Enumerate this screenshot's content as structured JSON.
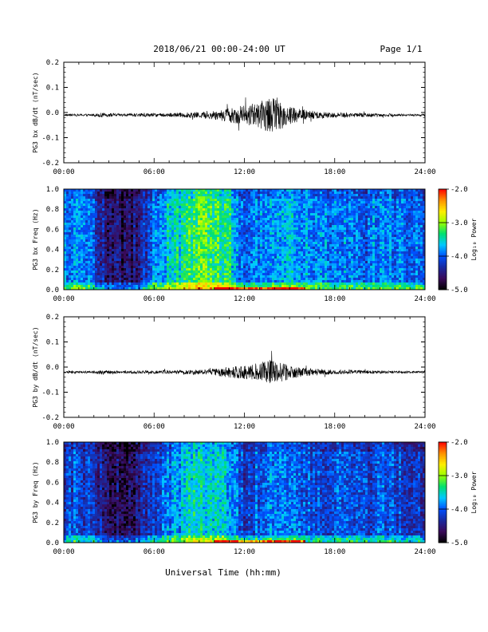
{
  "header": {
    "title": "2018/06/21  00:00-24:00 UT",
    "page": "Page 1/1"
  },
  "footer": {
    "xlabel": "Universal Time (hh:mm)"
  },
  "time_ticks": [
    "00:00",
    "06:00",
    "12:00",
    "18:00",
    "24:00"
  ],
  "colorbar": {
    "label": "Log₁₀ Power",
    "ticks": [
      "-2.0",
      "-3.0",
      "-4.0",
      "-5.0"
    ],
    "range": [
      -5.0,
      -2.0
    ],
    "colormap": [
      "#000000",
      "#3a0a5a",
      "#1a2aa0",
      "#0050ff",
      "#00c8ff",
      "#00e070",
      "#9aff00",
      "#ffee00",
      "#ff9000",
      "#ff0000"
    ]
  },
  "chart_data": [
    {
      "type": "line",
      "id": "bx-waveform",
      "ylabel": "PG3 bx dB/dt (nT/sec)",
      "xlim": [
        0,
        24
      ],
      "ylim": [
        -0.2,
        0.2
      ],
      "yticks": [
        "0.2",
        "0.1",
        "0.0",
        "-0.1",
        "-0.2"
      ],
      "baseline": -0.01,
      "envelope": {
        "x_hours": [
          0,
          2,
          2.5,
          3,
          4,
          5,
          6,
          7,
          8,
          9,
          10,
          11,
          12,
          13,
          13.5,
          14,
          14.5,
          15,
          16,
          17,
          18,
          20,
          22,
          24
        ],
        "amplitude": [
          0.004,
          0.005,
          0.009,
          0.007,
          0.005,
          0.007,
          0.007,
          0.008,
          0.01,
          0.012,
          0.018,
          0.03,
          0.04,
          0.05,
          0.07,
          0.065,
          0.055,
          0.04,
          0.02,
          0.015,
          0.01,
          0.008,
          0.005,
          0.004
        ]
      }
    },
    {
      "type": "heatmap",
      "id": "bx-spectrogram",
      "ylabel": "PG3 bx Freq (Hz)",
      "xlim": [
        0,
        24
      ],
      "ylim": [
        0.0,
        1.0
      ],
      "yticks": [
        "1.0",
        "0.8",
        "0.6",
        "0.4",
        "0.2",
        "0.0"
      ],
      "zlim": [
        -5.0,
        -2.0
      ],
      "power_profile": {
        "x_hours": [
          0,
          1,
          2,
          3,
          4,
          5,
          6,
          7,
          8,
          9,
          10,
          11,
          12,
          13,
          14,
          15,
          16,
          17,
          18,
          19,
          20,
          21,
          22,
          23,
          24
        ],
        "level": [
          -4.0,
          -3.9,
          -4.1,
          -4.6,
          -4.7,
          -4.5,
          -3.9,
          -3.6,
          -3.4,
          -3.2,
          -3.3,
          -3.4,
          -4.1,
          -3.9,
          -3.8,
          -3.7,
          -3.8,
          -3.9,
          -3.9,
          -3.9,
          -4.1,
          -3.8,
          -3.9,
          -4.0,
          -4.0
        ]
      }
    },
    {
      "type": "line",
      "id": "by-waveform",
      "ylabel": "PG3 by dB/dt (nT/sec)",
      "xlim": [
        0,
        24
      ],
      "ylim": [
        -0.2,
        0.2
      ],
      "yticks": [
        "0.2",
        "0.1",
        "0.0",
        "-0.1",
        "-0.2"
      ],
      "baseline": -0.02,
      "envelope": {
        "x_hours": [
          0,
          2,
          2.5,
          3,
          4,
          5,
          6,
          7,
          8,
          9,
          10,
          11,
          12,
          13,
          13.5,
          14,
          14.5,
          15,
          16,
          17,
          18,
          20,
          22,
          24
        ],
        "amplitude": [
          0.004,
          0.005,
          0.01,
          0.006,
          0.005,
          0.006,
          0.006,
          0.007,
          0.008,
          0.01,
          0.014,
          0.022,
          0.03,
          0.035,
          0.05,
          0.045,
          0.038,
          0.028,
          0.016,
          0.012,
          0.009,
          0.007,
          0.005,
          0.004
        ]
      }
    },
    {
      "type": "heatmap",
      "id": "by-spectrogram",
      "ylabel": "PG3 by Freq (Hz)",
      "xlim": [
        0,
        24
      ],
      "ylim": [
        0.0,
        1.0
      ],
      "yticks": [
        "1.0",
        "0.8",
        "0.6",
        "0.4",
        "0.2",
        "0.0"
      ],
      "zlim": [
        -5.0,
        -2.0
      ],
      "power_profile": {
        "x_hours": [
          0,
          1,
          2,
          3,
          4,
          5,
          6,
          7,
          8,
          9,
          10,
          11,
          12,
          13,
          14,
          15,
          16,
          17,
          18,
          19,
          20,
          21,
          22,
          23,
          24
        ],
        "level": [
          -4.2,
          -4.1,
          -4.3,
          -4.6,
          -4.7,
          -4.5,
          -4.2,
          -3.9,
          -3.7,
          -3.5,
          -3.6,
          -3.7,
          -4.2,
          -4.0,
          -3.9,
          -3.9,
          -4.0,
          -4.1,
          -4.1,
          -4.0,
          -4.2,
          -4.0,
          -4.1,
          -4.2,
          -4.2
        ]
      }
    }
  ]
}
